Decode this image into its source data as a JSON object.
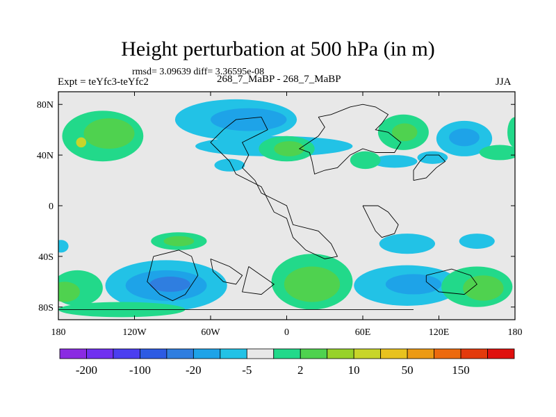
{
  "header": {
    "title": "Height perturbation at 500 hPa (in m)",
    "stats": "rmsd= 3.09639 diff= 3.36595e-08",
    "left_label": "Expt = teYfc3-teYfc2",
    "center_label": "268_7_MaBP - 268_7_MaBP",
    "right_label": "JJA"
  },
  "chart_data": {
    "type": "heatmap",
    "title": "Height perturbation at 500 hPa (in m)",
    "subtitle": "268_7_MaBP - 268_7_MaBP",
    "xlabel": "",
    "ylabel": "",
    "xlim": [
      -180,
      180
    ],
    "ylim": [
      -90,
      90
    ],
    "x_ticks": [
      {
        "value": -180,
        "label": "180"
      },
      {
        "value": -120,
        "label": "120W"
      },
      {
        "value": -60,
        "label": "60W"
      },
      {
        "value": 0,
        "label": "0"
      },
      {
        "value": 60,
        "label": "60E"
      },
      {
        "value": 120,
        "label": "120E"
      },
      {
        "value": 180,
        "label": "180"
      }
    ],
    "y_ticks": [
      {
        "value": 80,
        "label": "80N"
      },
      {
        "value": 40,
        "label": "40N"
      },
      {
        "value": 0,
        "label": "0"
      },
      {
        "value": -40,
        "label": "40S"
      },
      {
        "value": -80,
        "label": "80S"
      }
    ],
    "colorbar": {
      "colors": [
        "#8a2be2",
        "#7030f0",
        "#4b3ef0",
        "#2d5be3",
        "#2f7ee0",
        "#1ea3e8",
        "#22c2e6",
        "#e8e8e8",
        "#22d98a",
        "#4fd24f",
        "#97d22a",
        "#c8d52a",
        "#e8c21e",
        "#ec9a14",
        "#ec6a0e",
        "#e33a0c",
        "#e0100e"
      ],
      "labels": [
        {
          "index": 1,
          "text": "-200"
        },
        {
          "index": 3,
          "text": "-100"
        },
        {
          "index": 5,
          "text": "-20"
        },
        {
          "index": 7,
          "text": "-5"
        },
        {
          "index": 9,
          "text": "2"
        },
        {
          "index": 11,
          "text": "10"
        },
        {
          "index": 13,
          "text": "50"
        },
        {
          "index": 15,
          "text": "150"
        }
      ]
    },
    "background_level": "#e8e8e8",
    "regions": [
      {
        "name": "nh-pacific-west",
        "lon": -145,
        "lat": 55,
        "rlon": 32,
        "rlat": 20,
        "level": 8
      },
      {
        "name": "nh-pacific-west-core",
        "lon": -140,
        "lat": 57,
        "rlon": 20,
        "rlat": 12,
        "level": 9
      },
      {
        "name": "nh-pacific-west-peak",
        "lon": -162,
        "lat": 50,
        "rlon": 4,
        "rlat": 4,
        "level": 11
      },
      {
        "name": "nh-atlantic-low",
        "lon": -40,
        "lat": 68,
        "rlon": 48,
        "rlat": 16,
        "level": 6
      },
      {
        "name": "nh-atlantic-low-core",
        "lon": -30,
        "lat": 68,
        "rlon": 30,
        "rlat": 9,
        "level": 5
      },
      {
        "name": "nh-midlat-band",
        "lon": -10,
        "lat": 47,
        "rlon": 62,
        "rlat": 8,
        "level": 6
      },
      {
        "name": "nh-europe-high",
        "lon": 0,
        "lat": 45,
        "rlon": 22,
        "rlat": 10,
        "level": 8
      },
      {
        "name": "nh-europe-high-core",
        "lon": 2,
        "lat": 45,
        "rlon": 12,
        "rlat": 6,
        "level": 9
      },
      {
        "name": "nh-asia-north",
        "lon": 92,
        "lat": 58,
        "rlon": 20,
        "rlat": 14,
        "level": 8
      },
      {
        "name": "nh-asia-north-core",
        "lon": 93,
        "lat": 58,
        "rlon": 10,
        "rlat": 7,
        "level": 9
      },
      {
        "name": "nh-pacific-east-low",
        "lon": 140,
        "lat": 53,
        "rlon": 22,
        "rlat": 14,
        "level": 6
      },
      {
        "name": "nh-pacific-east-low-core",
        "lon": 140,
        "lat": 54,
        "rlon": 12,
        "rlat": 7,
        "level": 5
      },
      {
        "name": "nh-east-pacific-high",
        "lon": 168,
        "lat": 42,
        "rlon": 16,
        "rlat": 6,
        "level": 8
      },
      {
        "name": "nh-far-east-edge",
        "lon": 180,
        "lat": 58,
        "rlon": 6,
        "rlat": 12,
        "level": 8
      },
      {
        "name": "nh-subtrop-west",
        "lon": -45,
        "lat": 32,
        "rlon": 12,
        "rlat": 5,
        "level": 6
      },
      {
        "name": "nh-subtrop-asia",
        "lon": 85,
        "lat": 35,
        "rlon": 18,
        "rlat": 5,
        "level": 6
      },
      {
        "name": "nh-subtrop-asia2",
        "lon": 115,
        "lat": 38,
        "rlon": 12,
        "rlat": 5,
        "level": 6
      },
      {
        "name": "nh-asia-mid",
        "lon": 62,
        "lat": 36,
        "rlon": 12,
        "rlat": 7,
        "level": 8
      },
      {
        "name": "sh-pacific-low",
        "lon": -95,
        "lat": -63,
        "rlon": 48,
        "rlat": 20,
        "level": 6
      },
      {
        "name": "sh-pacific-low-core",
        "lon": -95,
        "lat": -63,
        "rlon": 32,
        "rlat": 12,
        "level": 5
      },
      {
        "name": "sh-pacific-low-inner",
        "lon": -92,
        "lat": -62,
        "rlon": 16,
        "rlat": 6,
        "level": 4
      },
      {
        "name": "sh-west-high",
        "lon": -165,
        "lat": -65,
        "rlon": 20,
        "rlat": 14,
        "level": 8
      },
      {
        "name": "sh-west-high-core",
        "lon": -175,
        "lat": -68,
        "rlon": 12,
        "rlat": 8,
        "level": 9
      },
      {
        "name": "sh-atlantic-high",
        "lon": 20,
        "lat": -60,
        "rlon": 32,
        "rlat": 22,
        "level": 8
      },
      {
        "name": "sh-atlantic-high-core",
        "lon": 20,
        "lat": -62,
        "rlon": 22,
        "rlat": 14,
        "level": 9
      },
      {
        "name": "sh-indian-low",
        "lon": 95,
        "lat": -63,
        "rlon": 42,
        "rlat": 16,
        "level": 6
      },
      {
        "name": "sh-indian-low-core",
        "lon": 100,
        "lat": -62,
        "rlon": 22,
        "rlat": 8,
        "level": 5
      },
      {
        "name": "sh-pacific-east-high",
        "lon": 150,
        "lat": -64,
        "rlon": 28,
        "rlat": 16,
        "level": 8
      },
      {
        "name": "sh-pacific-east-high-core",
        "lon": 155,
        "lat": -65,
        "rlon": 16,
        "rlat": 10,
        "level": 9
      },
      {
        "name": "sh-midlat-high",
        "lon": -85,
        "lat": -28,
        "rlon": 22,
        "rlat": 7,
        "level": 8
      },
      {
        "name": "sh-midlat-high-core",
        "lon": -85,
        "lat": -28,
        "rlon": 12,
        "rlat": 4,
        "level": 9
      },
      {
        "name": "sh-subtrop-low",
        "lon": 95,
        "lat": -30,
        "rlon": 22,
        "rlat": 8,
        "level": 6
      },
      {
        "name": "sh-subtrop-low2",
        "lon": 150,
        "lat": -28,
        "rlon": 14,
        "rlat": 6,
        "level": 6
      },
      {
        "name": "sh-southern-band",
        "lon": -130,
        "lat": -82,
        "rlon": 50,
        "rlat": 6,
        "level": 8
      },
      {
        "name": "sh-west-edge",
        "lon": -178,
        "lat": -32,
        "rlon": 6,
        "rlat": 5,
        "level": 6
      }
    ],
    "coastlines": [
      [
        [
          -20,
          70
        ],
        [
          -15,
          60
        ],
        [
          -25,
          55
        ],
        [
          -35,
          50
        ],
        [
          -30,
          40
        ],
        [
          -35,
          30
        ],
        [
          -25,
          20
        ],
        [
          -20,
          10
        ],
        [
          -10,
          5
        ],
        [
          0,
          0
        ],
        [
          5,
          -15
        ],
        [
          25,
          -20
        ],
        [
          35,
          -30
        ],
        [
          40,
          -40
        ],
        [
          30,
          -42
        ],
        [
          15,
          -35
        ],
        [
          5,
          -25
        ],
        [
          0,
          -10
        ],
        [
          -10,
          -5
        ],
        [
          -20,
          15
        ],
        [
          -40,
          25
        ],
        [
          -45,
          35
        ],
        [
          -55,
          45
        ],
        [
          -60,
          50
        ],
        [
          -50,
          60
        ],
        [
          -40,
          68
        ],
        [
          -20,
          70
        ]
      ],
      [
        [
          25,
          70
        ],
        [
          35,
          72
        ],
        [
          50,
          78
        ],
        [
          60,
          80
        ],
        [
          70,
          78
        ],
        [
          80,
          72
        ],
        [
          75,
          65
        ],
        [
          70,
          60
        ],
        [
          80,
          58
        ],
        [
          90,
          50
        ],
        [
          85,
          42
        ],
        [
          70,
          42
        ],
        [
          60,
          45
        ],
        [
          50,
          40
        ],
        [
          45,
          35
        ],
        [
          40,
          30
        ],
        [
          30,
          28
        ],
        [
          22,
          25
        ],
        [
          20,
          35
        ],
        [
          18,
          42
        ],
        [
          10,
          45
        ],
        [
          25,
          55
        ],
        [
          30,
          62
        ],
        [
          25,
          70
        ]
      ],
      [
        [
          100,
          20
        ],
        [
          110,
          22
        ],
        [
          118,
          30
        ],
        [
          125,
          35
        ],
        [
          120,
          40
        ],
        [
          110,
          40
        ],
        [
          105,
          35
        ],
        [
          100,
          28
        ],
        [
          100,
          20
        ]
      ],
      [
        [
          60,
          0
        ],
        [
          65,
          -10
        ],
        [
          70,
          -20
        ],
        [
          75,
          -25
        ],
        [
          85,
          -22
        ],
        [
          88,
          -15
        ],
        [
          80,
          -5
        ],
        [
          72,
          0
        ],
        [
          60,
          0
        ]
      ],
      [
        [
          -105,
          -40
        ],
        [
          -85,
          -35
        ],
        [
          -75,
          -40
        ],
        [
          -70,
          -55
        ],
        [
          -80,
          -70
        ],
        [
          -90,
          -75
        ],
        [
          -100,
          -70
        ],
        [
          -110,
          -60
        ],
        [
          -105,
          -40
        ]
      ],
      [
        [
          -60,
          -42
        ],
        [
          -45,
          -48
        ],
        [
          -35,
          -55
        ],
        [
          -40,
          -62
        ],
        [
          -50,
          -60
        ],
        [
          -58,
          -52
        ],
        [
          -60,
          -42
        ]
      ],
      [
        [
          -30,
          -48
        ],
        [
          -20,
          -55
        ],
        [
          -10,
          -62
        ],
        [
          -20,
          -70
        ],
        [
          -35,
          -68
        ],
        [
          -30,
          -48
        ]
      ],
      [
        [
          110,
          -55
        ],
        [
          130,
          -50
        ],
        [
          145,
          -55
        ],
        [
          150,
          -62
        ],
        [
          140,
          -70
        ],
        [
          120,
          -68
        ],
        [
          110,
          -60
        ],
        [
          110,
          -55
        ]
      ],
      [
        [
          -180,
          -82
        ],
        [
          -120,
          -82
        ],
        [
          -60,
          -82
        ],
        [
          0,
          -82
        ],
        [
          60,
          -82
        ],
        [
          100,
          -82
        ]
      ]
    ]
  }
}
